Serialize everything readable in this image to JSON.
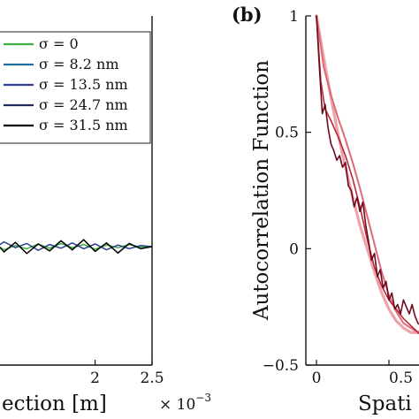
{
  "chart_data": [
    {
      "type": "line",
      "panel": "a",
      "xlabel": "ection [m]",
      "x_exponent_label": "× 10",
      "x_exponent": "−3",
      "x_ticks": [
        {
          "value": 2,
          "label": "2"
        },
        {
          "value": 2.5,
          "label": "2.5"
        }
      ],
      "xlim": [
        0,
        2.5
      ],
      "legend": {
        "placement": "top-right",
        "entries": [
          {
            "label": "σ = 0",
            "color": "#3cb043"
          },
          {
            "label": "σ = 8.2 nm",
            "color": "#1f6fa3"
          },
          {
            "label": "σ = 13.5 nm",
            "color": "#2b3f8f"
          },
          {
            "label": "σ = 24.7 nm",
            "color": "#1e2a5a"
          },
          {
            "label": "σ = 31.5 nm",
            "color": "#000000"
          }
        ]
      },
      "series": [
        {
          "color": "#3cb043",
          "x": [
            0,
            0.1,
            0.2,
            0.3,
            0.4,
            0.5,
            0.6,
            0.7,
            0.8,
            0.9,
            1.0,
            1.1,
            1.2,
            1.3,
            1.4,
            1.5,
            1.6,
            1.7,
            1.8,
            1.9,
            2.0,
            2.1,
            2.2,
            2.3,
            2.4,
            2.5
          ],
          "y": [
            0,
            0.5,
            -0.4,
            0.8,
            -0.6,
            0.3,
            -0.2,
            0.6,
            -0.5,
            0.4,
            -0.3,
            0.7,
            -0.6,
            0.2,
            -0.4,
            0.5,
            -0.3,
            0.6,
            -0.2,
            0.4,
            -0.5,
            0.3,
            -0.2,
            0.4,
            -0.1,
            0.0
          ]
        },
        {
          "color": "#2b3f8f",
          "x": [
            0,
            0.1,
            0.2,
            0.3,
            0.4,
            0.5,
            0.6,
            0.7,
            0.8,
            0.9,
            1.0,
            1.1,
            1.2,
            1.3,
            1.4,
            1.5,
            1.6,
            1.7,
            1.8,
            1.9,
            2.0,
            2.1,
            2.2,
            2.3,
            2.4,
            2.5
          ],
          "y": [
            0,
            -0.6,
            0.7,
            -0.9,
            0.5,
            -0.3,
            0.8,
            -0.4,
            0.6,
            -0.8,
            0.3,
            -0.5,
            0.9,
            -0.2,
            0.6,
            -0.7,
            0.4,
            -0.3,
            0.7,
            -0.4,
            0.5,
            -0.6,
            0.3,
            -0.4,
            0.2,
            0.0
          ]
        },
        {
          "color": "#000000",
          "x": [
            0,
            0.1,
            0.2,
            0.3,
            0.4,
            0.5,
            0.6,
            0.7,
            0.8,
            0.9,
            1.0,
            1.1,
            1.2,
            1.3,
            1.4,
            1.5,
            1.6,
            1.7,
            1.8,
            1.9,
            2.0,
            2.1,
            2.2,
            2.3,
            2.4,
            2.5
          ],
          "y": [
            0,
            0.9,
            -1.1,
            1.3,
            -0.7,
            1.0,
            -1.4,
            0.6,
            -0.9,
            1.2,
            -0.5,
            1.4,
            -1.0,
            0.8,
            -1.3,
            0.5,
            -0.8,
            1.1,
            -0.6,
            1.3,
            -0.9,
            0.7,
            -1.2,
            0.6,
            -0.4,
            0.0
          ]
        }
      ]
    },
    {
      "type": "line",
      "panel": "b",
      "panel_label": "(b)",
      "ylabel": "Autocorrelation Function",
      "xlabel": "Spati",
      "ylim": [
        -0.5,
        1
      ],
      "y_ticks": [
        {
          "value": 1,
          "label": "1"
        },
        {
          "value": 0.5,
          "label": "0.5"
        },
        {
          "value": 0,
          "label": "0"
        },
        {
          "value": -0.5,
          "label": "−0.5"
        }
      ],
      "xlim": [
        0,
        0.72
      ],
      "x_ticks": [
        {
          "value": 0,
          "label": "0"
        },
        {
          "value": 0.5,
          "label": "0.5"
        }
      ],
      "series": [
        {
          "color": "#eea3a8",
          "width": 3.2,
          "x": [
            0,
            0.05,
            0.1,
            0.15,
            0.2,
            0.25,
            0.3,
            0.35,
            0.4,
            0.45,
            0.5,
            0.55,
            0.6,
            0.65,
            0.7,
            0.72
          ],
          "y": [
            1.0,
            0.82,
            0.65,
            0.49,
            0.35,
            0.22,
            0.1,
            0.0,
            -0.1,
            -0.19,
            -0.26,
            -0.31,
            -0.34,
            -0.36,
            -0.36,
            -0.35
          ]
        },
        {
          "color": "#dd6b77",
          "width": 2.0,
          "x": [
            0,
            0.05,
            0.1,
            0.15,
            0.2,
            0.25,
            0.3,
            0.35,
            0.4,
            0.45,
            0.5,
            0.55,
            0.6,
            0.65,
            0.7,
            0.72
          ],
          "y": [
            1.0,
            0.78,
            0.66,
            0.56,
            0.47,
            0.37,
            0.26,
            0.14,
            0.02,
            -0.1,
            -0.2,
            -0.27,
            -0.32,
            -0.34,
            -0.36,
            -0.37
          ]
        },
        {
          "color": "#b8283d",
          "width": 1.6,
          "x": [
            0,
            0.03,
            0.06,
            0.1,
            0.15,
            0.2,
            0.25,
            0.3,
            0.35,
            0.4,
            0.45,
            0.5,
            0.55,
            0.6,
            0.65,
            0.7,
            0.72
          ],
          "y": [
            1.0,
            0.72,
            0.6,
            0.55,
            0.48,
            0.4,
            0.3,
            0.18,
            0.04,
            -0.08,
            -0.16,
            -0.22,
            -0.26,
            -0.3,
            -0.33,
            -0.36,
            -0.37
          ]
        },
        {
          "color": "#6e0a1e",
          "width": 1.6,
          "x": [
            0,
            0.02,
            0.04,
            0.06,
            0.08,
            0.1,
            0.12,
            0.14,
            0.16,
            0.18,
            0.2,
            0.22,
            0.24,
            0.26,
            0.28,
            0.3,
            0.32,
            0.34,
            0.36,
            0.38,
            0.4,
            0.42,
            0.44,
            0.46,
            0.48,
            0.5,
            0.52,
            0.54,
            0.56,
            0.58,
            0.6,
            0.62,
            0.64,
            0.66,
            0.68,
            0.7,
            0.72
          ],
          "y": [
            1.0,
            0.78,
            0.58,
            0.62,
            0.52,
            0.45,
            0.42,
            0.38,
            0.4,
            0.35,
            0.37,
            0.27,
            0.25,
            0.18,
            0.22,
            0.16,
            0.2,
            0.1,
            0.03,
            -0.05,
            -0.02,
            -0.12,
            -0.09,
            -0.17,
            -0.14,
            -0.22,
            -0.19,
            -0.26,
            -0.24,
            -0.28,
            -0.22,
            -0.25,
            -0.28,
            -0.24,
            -0.29,
            -0.32,
            -0.33
          ]
        }
      ]
    }
  ]
}
